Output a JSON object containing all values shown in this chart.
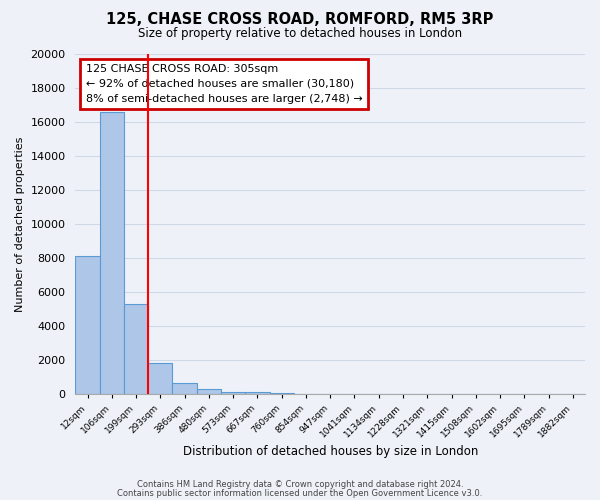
{
  "title_line1": "125, CHASE CROSS ROAD, ROMFORD, RM5 3RP",
  "title_line2": "Size of property relative to detached houses in London",
  "xlabel": "Distribution of detached houses by size in London",
  "ylabel": "Number of detached properties",
  "footer_line1": "Contains HM Land Registry data © Crown copyright and database right 2024.",
  "footer_line2": "Contains public sector information licensed under the Open Government Licence v3.0.",
  "bin_labels": [
    "12sqm",
    "106sqm",
    "199sqm",
    "293sqm",
    "386sqm",
    "480sqm",
    "573sqm",
    "667sqm",
    "760sqm",
    "854sqm",
    "947sqm",
    "1041sqm",
    "1134sqm",
    "1228sqm",
    "1321sqm",
    "1415sqm",
    "1508sqm",
    "1602sqm",
    "1695sqm",
    "1789sqm",
    "1882sqm"
  ],
  "bar_values": [
    8100,
    16600,
    5300,
    1800,
    650,
    280,
    110,
    80,
    50,
    0,
    0,
    0,
    0,
    0,
    0,
    0,
    0,
    0,
    0,
    0,
    0
  ],
  "bar_color": "#aec6e8",
  "bar_edge_color": "#5b9bd5",
  "red_line_x": 3.0,
  "annotation_title": "125 CHASE CROSS ROAD: 305sqm",
  "annotation_line1": "← 92% of detached houses are smaller (30,180)",
  "annotation_line2": "8% of semi-detached houses are larger (2,748) →",
  "annotation_box_color": "#ffffff",
  "annotation_box_edge": "#cc0000",
  "ylim": [
    0,
    20000
  ],
  "yticks": [
    0,
    2000,
    4000,
    6000,
    8000,
    10000,
    12000,
    14000,
    16000,
    18000,
    20000
  ],
  "grid_color": "#d0d8e8",
  "background_color": "#eef2f8"
}
